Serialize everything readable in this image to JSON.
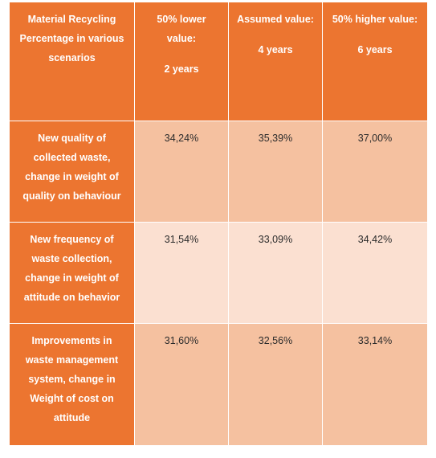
{
  "table": {
    "header": {
      "corner": [
        "Material Recycling",
        "Percentage in various",
        "scenarios"
      ],
      "lower": {
        "title": [
          "50% lower",
          "value:"
        ],
        "years": "2 years"
      },
      "assumed": {
        "title": [
          "Assumed value:"
        ],
        "years": "4 years"
      },
      "higher": {
        "title": [
          "50% higher value:"
        ],
        "years": "6 years"
      }
    },
    "rows": [
      {
        "label": [
          "New quality of",
          "collected waste,",
          "change in weight of",
          "quality on behaviour"
        ],
        "values": [
          "34,24%",
          "35,39%",
          "37,00%"
        ]
      },
      {
        "label": [
          "New frequency of",
          "waste collection,",
          "change in weight of",
          "attitude on behavior"
        ],
        "values": [
          "31,54%",
          "33,09%",
          "34,42%"
        ]
      },
      {
        "label": [
          "Improvements in",
          "waste management",
          "system, change in",
          "Weight of cost on",
          "attitude"
        ],
        "values": [
          "31,60%",
          "32,56%",
          "33,14%"
        ]
      }
    ]
  },
  "colors": {
    "header_orange": "#ec7530",
    "cell_light": "#f5c1a0",
    "cell_lighter": "#fbe0d1"
  }
}
